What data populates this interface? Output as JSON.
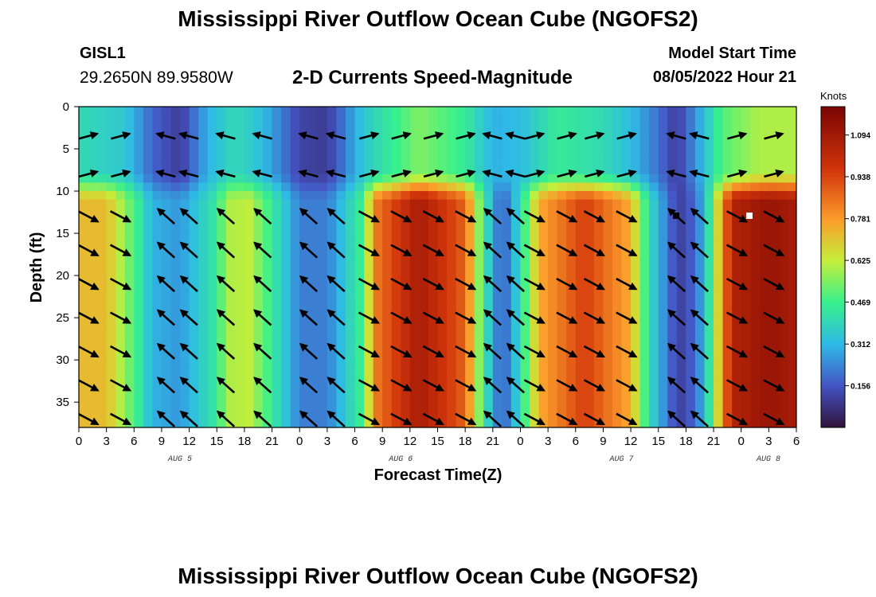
{
  "header": {
    "title": "Mississippi River Outflow Ocean Cube (NGOFS2)",
    "station_id": "GISL1",
    "station_coords": "29.2650N  89.9580W",
    "subtitle": "2-D Currents Speed-Magnitude",
    "model_label": "Model Start Time",
    "model_time": "08/05/2022 Hour 21"
  },
  "footer": {
    "title": "Mississippi River Outflow Ocean Cube (NGOFS2)"
  },
  "chart_data": {
    "type": "heatmap",
    "title": "2-D Currents Speed-Magnitude",
    "xlabel": "Forecast Time(Z)",
    "ylabel": "Depth (ft)",
    "x_range_hours": [
      0,
      78
    ],
    "y_range_ft": [
      0,
      38
    ],
    "x_ticks": [
      "0",
      "3",
      "6",
      "9",
      "12",
      "15",
      "18",
      "21",
      "0",
      "3",
      "6",
      "9",
      "12",
      "15",
      "18",
      "21",
      "0",
      "3",
      "6",
      "9",
      "12",
      "15",
      "18",
      "21",
      "0",
      "3",
      "6"
    ],
    "y_ticks": [
      0,
      5,
      10,
      15,
      20,
      25,
      30,
      35
    ],
    "date_labels": [
      {
        "label": "AUG 5",
        "hour": 11
      },
      {
        "label": "AUG 6",
        "hour": 35
      },
      {
        "label": "AUG 7",
        "hour": 59
      },
      {
        "label": "AUG 8",
        "hour": 83
      }
    ],
    "colorbar": {
      "title": "Knots",
      "range": [
        0.0,
        1.2
      ],
      "ticks": [
        "0.156",
        "0.312",
        "0.469",
        "0.625",
        "0.781",
        "0.938",
        "1.094"
      ]
    },
    "speed_profile_deep": [
      {
        "hour": 0,
        "knots": 0.72
      },
      {
        "hour": 3,
        "knots": 0.72
      },
      {
        "hour": 6.5,
        "knots": 0.45
      },
      {
        "hour": 8,
        "knots": 0.3
      },
      {
        "hour": 11,
        "knots": 0.26
      },
      {
        "hour": 14.5,
        "knots": 0.42
      },
      {
        "hour": 16.5,
        "knots": 0.6
      },
      {
        "hour": 18.5,
        "knots": 0.62
      },
      {
        "hour": 21,
        "knots": 0.45
      },
      {
        "hour": 24,
        "knots": 0.22
      },
      {
        "hour": 27,
        "knots": 0.22
      },
      {
        "hour": 30.5,
        "knots": 0.45
      },
      {
        "hour": 32.5,
        "knots": 0.85
      },
      {
        "hour": 37,
        "knots": 1.08
      },
      {
        "hour": 42,
        "knots": 0.88
      },
      {
        "hour": 44,
        "knots": 0.45
      },
      {
        "hour": 46,
        "knots": 0.15
      },
      {
        "hour": 48,
        "knots": 0.4
      },
      {
        "hour": 50,
        "knots": 0.75
      },
      {
        "hour": 55,
        "knots": 0.95
      },
      {
        "hour": 60,
        "knots": 0.75
      },
      {
        "hour": 62,
        "knots": 0.4
      },
      {
        "hour": 65,
        "knots": 0.12
      },
      {
        "hour": 66,
        "knots": 0.12
      },
      {
        "hour": 68,
        "knots": 0.3
      },
      {
        "hour": 71,
        "knots": 1.05
      },
      {
        "hour": 75,
        "knots": 1.12
      },
      {
        "hour": 78,
        "knots": 1.08
      }
    ],
    "speed_profile_surface": [
      {
        "hour": 0,
        "knots": 0.4
      },
      {
        "hour": 5,
        "knots": 0.35
      },
      {
        "hour": 8,
        "knots": 0.18
      },
      {
        "hour": 11,
        "knots": 0.1
      },
      {
        "hour": 14,
        "knots": 0.3
      },
      {
        "hour": 17,
        "knots": 0.4
      },
      {
        "hour": 20,
        "knots": 0.32
      },
      {
        "hour": 24,
        "knots": 0.12
      },
      {
        "hour": 27,
        "knots": 0.1
      },
      {
        "hour": 31,
        "knots": 0.35
      },
      {
        "hour": 37,
        "knots": 0.55
      },
      {
        "hour": 42,
        "knots": 0.45
      },
      {
        "hour": 45,
        "knots": 0.3
      },
      {
        "hour": 48,
        "knots": 0.32
      },
      {
        "hour": 52,
        "knots": 0.45
      },
      {
        "hour": 57,
        "knots": 0.4
      },
      {
        "hour": 60,
        "knots": 0.32
      },
      {
        "hour": 63,
        "knots": 0.2
      },
      {
        "hour": 65,
        "knots": 0.1
      },
      {
        "hour": 67,
        "knots": 0.25
      },
      {
        "hour": 70,
        "knots": 0.5
      },
      {
        "hour": 74,
        "knots": 0.6
      },
      {
        "hour": 78,
        "knots": 0.6
      }
    ],
    "arrow_rows_ft": [
      3.5,
      8,
      13,
      17,
      21,
      25,
      29,
      33,
      37
    ],
    "arrow_columns_hours": [
      1,
      4.5,
      9.5,
      12,
      16,
      20,
      25,
      28,
      31.5,
      35,
      38.5,
      42,
      45,
      47.5,
      49.5,
      53,
      56,
      59.5,
      65,
      67.5,
      71.5,
      75.5
    ],
    "arrow_direction_ne_hours": [
      [
        0,
        7
      ],
      [
        31,
        43
      ],
      [
        48.5,
        61.5
      ],
      [
        70,
        78
      ]
    ]
  }
}
